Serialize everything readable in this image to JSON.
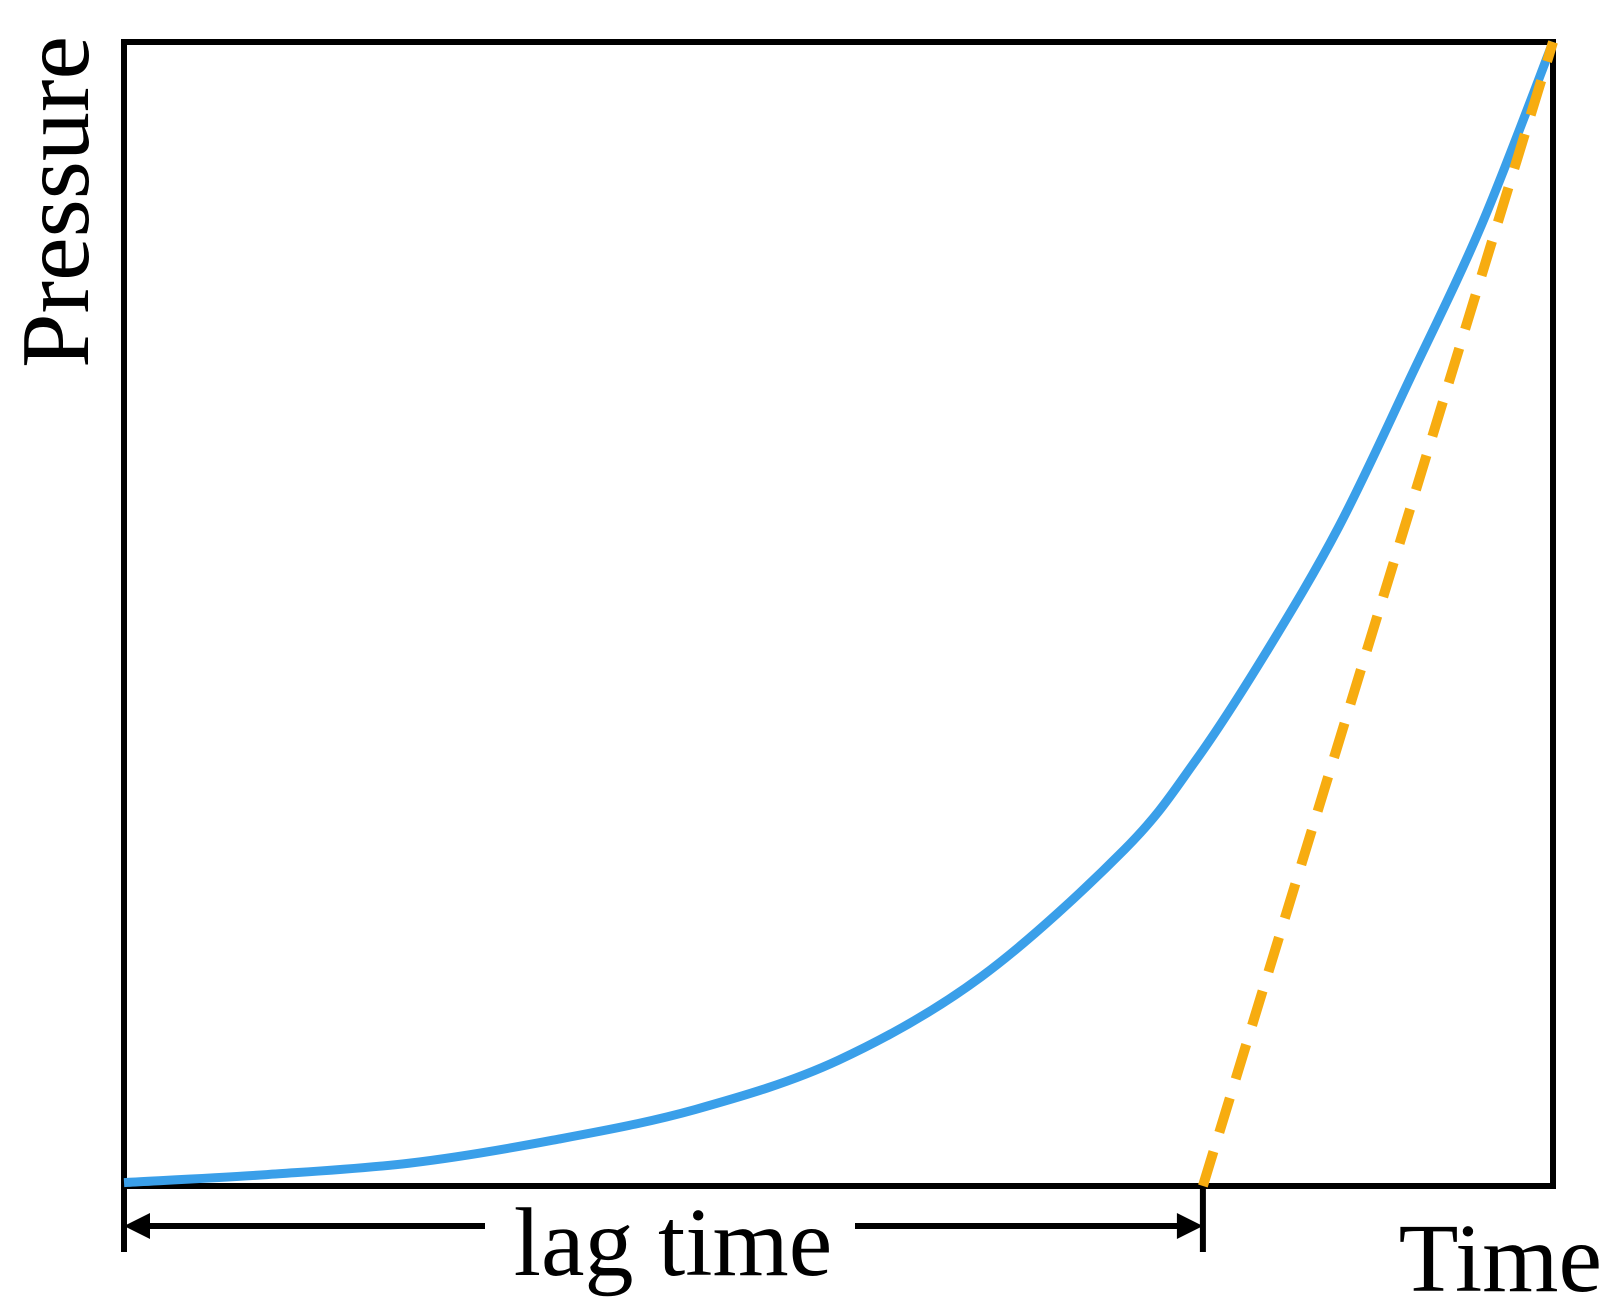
{
  "chart_data": {
    "type": "line",
    "title": "",
    "xlabel": "Time",
    "ylabel": "Pressure",
    "xlim": [
      0,
      1
    ],
    "ylim": [
      0,
      1
    ],
    "grid": false,
    "series": [
      {
        "color": "#3a9fe9",
        "style": "solid",
        "points": [
          [
            0.0,
            0.003
          ],
          [
            0.1,
            0.01
          ],
          [
            0.2,
            0.02
          ],
          [
            0.3,
            0.04
          ],
          [
            0.4,
            0.067
          ],
          [
            0.5,
            0.11
          ],
          [
            0.6,
            0.183
          ],
          [
            0.7,
            0.294
          ],
          [
            0.75,
            0.372
          ],
          [
            0.8,
            0.468
          ],
          [
            0.85,
            0.576
          ],
          [
            0.9,
            0.706
          ],
          [
            0.95,
            0.84
          ],
          [
            1.0,
            1.0
          ]
        ]
      },
      {
        "color": "#f7ac10",
        "style": "dashed",
        "points": [
          [
            0.755,
            0.0
          ],
          [
            1.0,
            1.0
          ]
        ]
      }
    ],
    "annotations": [
      {
        "text": "lag time",
        "from_x": 0.0,
        "to_x": 0.755
      }
    ]
  }
}
